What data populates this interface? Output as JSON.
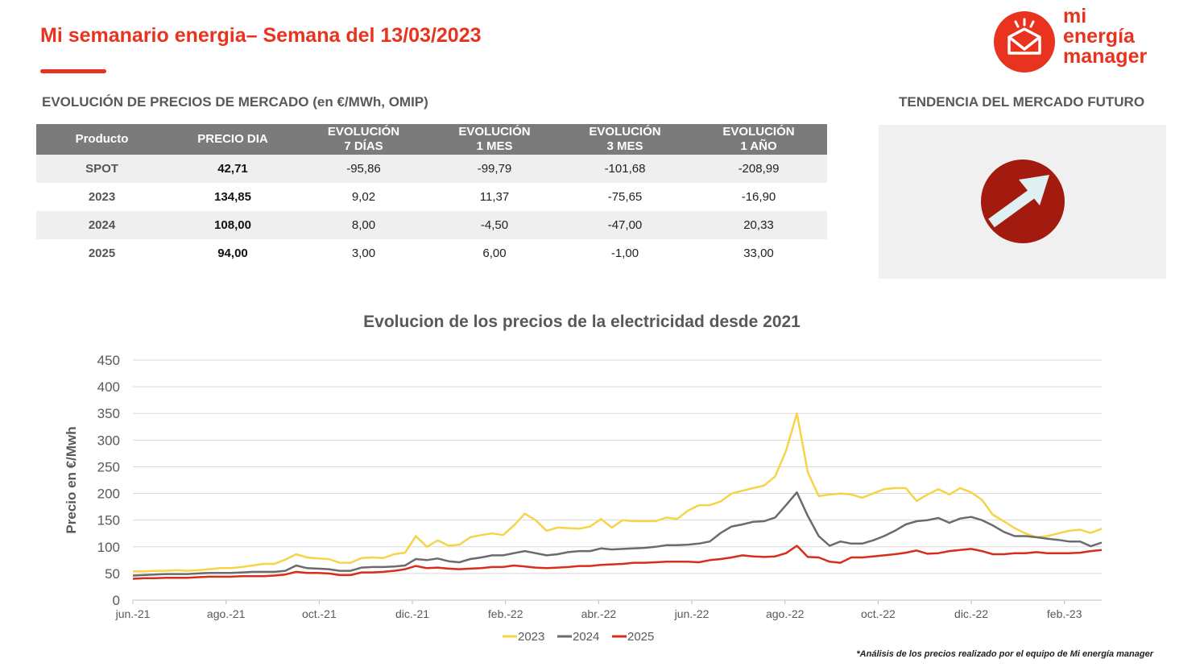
{
  "header": {
    "title": "Mi semanario energia– Semana del 13/03/2023"
  },
  "logo": {
    "line1": "mi",
    "line2": "energía",
    "line3": "manager"
  },
  "prices": {
    "title": "EVOLUCIÓN DE PRECIOS DE MERCADO (en €/MWh, OMIP)",
    "columns": [
      "Producto",
      "PRECIO DIA",
      "EVOLUCIÓN\n7 DÍAS",
      "EVOLUCIÓN\n1 MES",
      "EVOLUCIÓN\n3 MES",
      "EVOLUCIÓN\n1 AÑO"
    ],
    "rows": [
      [
        "SPOT",
        "42,71",
        "-95,86",
        "-99,79",
        "-101,68",
        "-208,99"
      ],
      [
        "2023",
        "134,85",
        "9,02",
        "11,37",
        "-75,65",
        "-16,90"
      ],
      [
        "2024",
        "108,00",
        "8,00",
        "-4,50",
        "-47,00",
        "20,33"
      ],
      [
        "2025",
        "94,00",
        "3,00",
        "6,00",
        "-1,00",
        "33,00"
      ]
    ]
  },
  "trend": {
    "title": "TENDENCIA DEL MERCADO FUTURO",
    "direction_icon": "arrow-up-right-icon",
    "accent": "#a31a0e",
    "arrow_color": "#dff0f2"
  },
  "chart_data": {
    "type": "line",
    "title": "Evolucion de los precios de la electricidad desde 2021",
    "ylabel": "Precio en €/Mwh",
    "xlabel": "",
    "ylim": [
      0,
      450
    ],
    "yticks": [
      0,
      50,
      100,
      150,
      200,
      250,
      300,
      350,
      400,
      450
    ],
    "xticks": [
      "jun.-21",
      "ago.-21",
      "oct.-21",
      "dic.-21",
      "feb.-22",
      "abr.-22",
      "jun.-22",
      "ago.-22",
      "oct.-22",
      "dic.-22",
      "feb.-23"
    ],
    "grid": true,
    "legend": "bottom-center",
    "series": [
      {
        "name": "2023",
        "color": "#f7d348",
        "values": [
          54,
          54,
          55,
          55,
          56,
          55,
          56,
          58,
          60,
          60,
          62,
          65,
          68,
          68,
          76,
          86,
          80,
          78,
          77,
          70,
          70,
          79,
          80,
          79,
          86,
          89,
          120,
          100,
          112,
          102,
          104,
          118,
          122,
          125,
          122,
          140,
          162,
          150,
          130,
          136,
          135,
          134,
          138,
          152,
          136,
          150,
          148,
          148,
          148,
          155,
          152,
          168,
          178,
          178,
          185,
          200,
          205,
          210,
          215,
          232,
          280,
          350,
          240,
          195,
          198,
          200,
          198,
          192,
          200,
          208,
          210,
          210,
          186,
          198,
          208,
          198,
          210,
          202,
          188,
          160,
          148,
          135,
          125,
          118,
          120,
          125,
          130,
          132,
          126,
          134
        ]
      },
      {
        "name": "2024",
        "color": "#6b6b6b",
        "values": [
          46,
          47,
          48,
          49,
          49,
          49,
          50,
          51,
          51,
          51,
          52,
          53,
          53,
          53,
          55,
          65,
          60,
          59,
          58,
          55,
          55,
          61,
          62,
          62,
          63,
          65,
          77,
          75,
          78,
          73,
          71,
          77,
          80,
          84,
          84,
          88,
          92,
          88,
          84,
          86,
          90,
          92,
          92,
          97,
          95,
          96,
          97,
          98,
          100,
          103,
          103,
          104,
          106,
          110,
          126,
          138,
          142,
          147,
          148,
          155,
          178,
          202,
          158,
          120,
          102,
          110,
          106,
          106,
          112,
          120,
          130,
          142,
          148,
          150,
          154,
          145,
          153,
          156,
          150,
          140,
          128,
          120,
          120,
          118,
          115,
          113,
          110,
          110,
          101,
          108
        ]
      },
      {
        "name": "2025",
        "color": "#d92d1c",
        "values": [
          40,
          41,
          41,
          42,
          42,
          42,
          43,
          44,
          44,
          44,
          45,
          45,
          45,
          46,
          48,
          53,
          51,
          51,
          50,
          47,
          47,
          52,
          52,
          53,
          55,
          58,
          64,
          60,
          61,
          59,
          58,
          59,
          60,
          62,
          62,
          65,
          63,
          61,
          60,
          61,
          62,
          64,
          64,
          66,
          67,
          68,
          70,
          70,
          71,
          72,
          72,
          72,
          71,
          75,
          77,
          80,
          84,
          82,
          81,
          82,
          88,
          102,
          81,
          80,
          72,
          70,
          80,
          80,
          82,
          84,
          86,
          89,
          93,
          87,
          88,
          92,
          94,
          96,
          92,
          86,
          86,
          88,
          88,
          90,
          88,
          88,
          88,
          89,
          92,
          94
        ]
      }
    ]
  },
  "footnote": "*Análisis de los precios realizado por el equipo de Mi energía manager"
}
